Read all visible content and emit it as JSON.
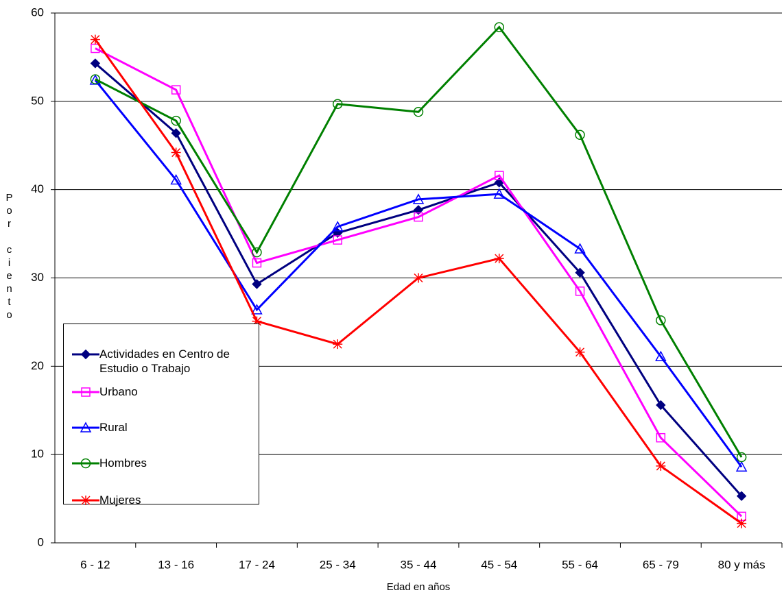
{
  "chart_data": {
    "type": "line",
    "x_label": "Edad en años",
    "y_label": "Por ciento",
    "categories": [
      "6 - 12",
      "13 - 16",
      "17 - 24",
      "25 - 34",
      "35 - 44",
      "45 - 54",
      "55 - 64",
      "65 - 79",
      "80 y más"
    ],
    "ylim": [
      0,
      60
    ],
    "yticks": [
      0,
      10,
      20,
      30,
      40,
      50,
      60
    ],
    "grid": true,
    "series": [
      {
        "name": "Actividades en Centro de Estudio o Trabajo",
        "color": "#000080",
        "marker": "diamond",
        "values": [
          54.3,
          46.4,
          29.3,
          35.1,
          37.7,
          40.8,
          30.6,
          15.6,
          5.3
        ]
      },
      {
        "name": "Urbano",
        "color": "#ff00ff",
        "marker": "square",
        "values": [
          56.0,
          51.3,
          31.7,
          34.3,
          36.9,
          41.6,
          28.5,
          11.9,
          3.0
        ]
      },
      {
        "name": "Rural",
        "color": "#0000ff",
        "marker": "triangle",
        "values": [
          52.4,
          41.1,
          26.4,
          35.8,
          38.9,
          39.5,
          33.3,
          21.1,
          8.6
        ]
      },
      {
        "name": "Hombres",
        "color": "#008000",
        "marker": "circle",
        "values": [
          52.5,
          47.8,
          32.9,
          49.7,
          48.8,
          58.4,
          46.2,
          25.2,
          9.7
        ]
      },
      {
        "name": "Mujeres",
        "color": "#ff0000",
        "marker": "asterisk",
        "values": [
          57.0,
          44.2,
          25.1,
          22.5,
          30.0,
          32.2,
          21.6,
          8.7,
          2.2
        ]
      }
    ]
  }
}
